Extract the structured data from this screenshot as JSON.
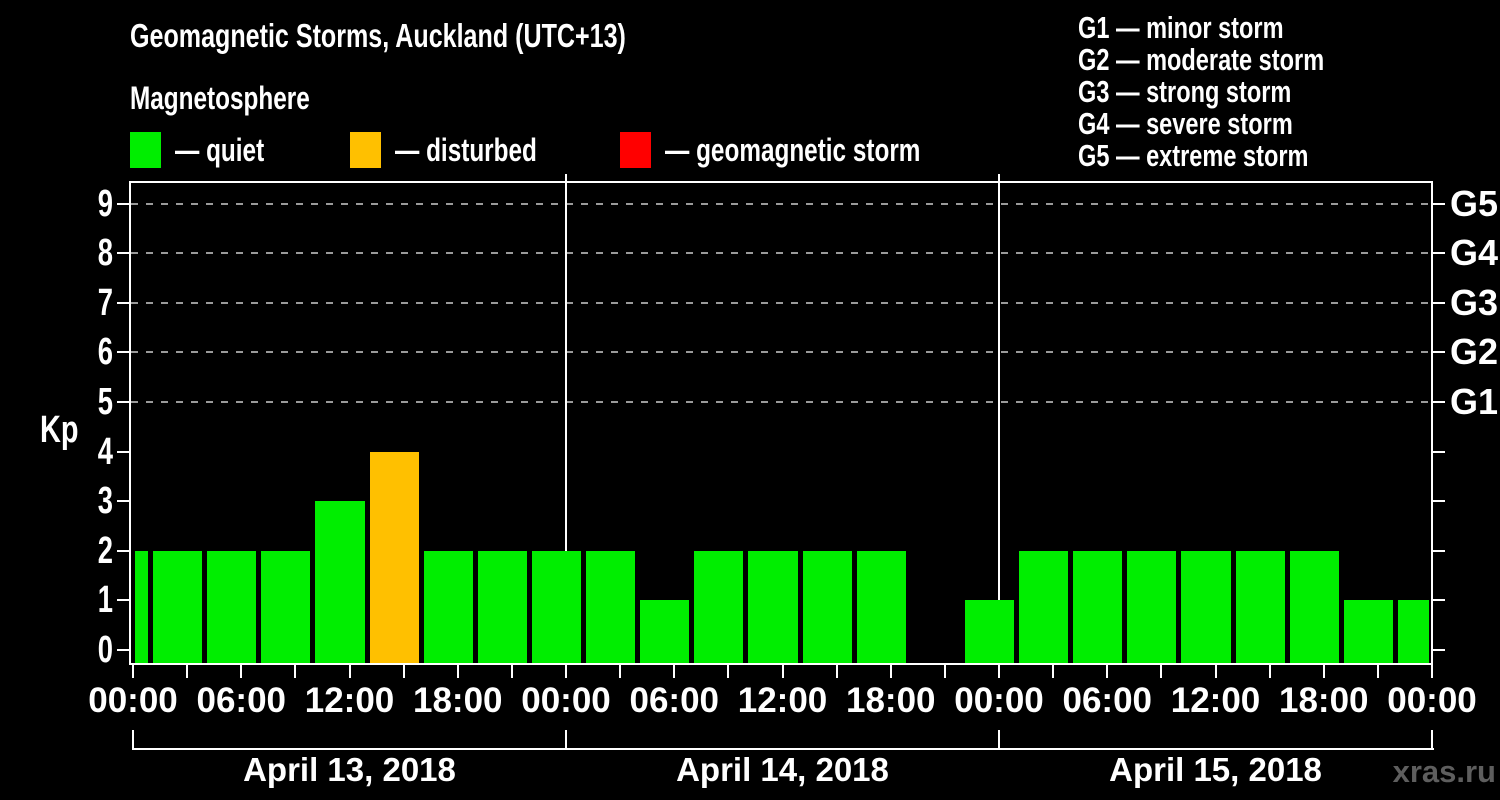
{
  "title": "Geomagnetic Storms, Auckland (UTC+13)",
  "subtitle": "Magnetosphere",
  "watermark": "xras.ru",
  "legend": {
    "items": [
      {
        "status": "quiet",
        "label": "— quiet",
        "color": "#00ee00"
      },
      {
        "status": "disturbed",
        "label": "— disturbed",
        "color": "#ffc000"
      },
      {
        "status": "storm",
        "label": "— geomagnetic storm",
        "color": "#ff0000"
      }
    ]
  },
  "storm_scale_legend": [
    {
      "code": "G1",
      "label": "G1 — minor storm"
    },
    {
      "code": "G2",
      "label": "G2 — moderate storm"
    },
    {
      "code": "G3",
      "label": "G3 — strong storm"
    },
    {
      "code": "G4",
      "label": "G4 — severe storm"
    },
    {
      "code": "G5",
      "label": "G5 — extreme storm"
    }
  ],
  "chart_data": {
    "type": "bar",
    "title": "Geomagnetic Storms, Auckland (UTC+13)",
    "ylabel": "Kp",
    "ylim": [
      0,
      9
    ],
    "yticks": [
      0,
      1,
      2,
      3,
      4,
      5,
      6,
      7,
      8,
      9
    ],
    "grid": "dashed horizontal lines at Kp 5-9 only",
    "timezone": "UTC+13",
    "x_hours_range": [
      0,
      72
    ],
    "x_minor_tick_hours": 3,
    "x_label_step_hours": 6,
    "xtick_labels": [
      "00:00",
      "06:00",
      "12:00",
      "18:00",
      "00:00",
      "06:00",
      "12:00",
      "18:00",
      "00:00",
      "06:00",
      "12:00",
      "18:00",
      "00:00"
    ],
    "days": [
      {
        "label": "April 13, 2018"
      },
      {
        "label": "April 14, 2018"
      },
      {
        "label": "April 15, 2018"
      }
    ],
    "right_axis_labels": [
      {
        "kp": 5,
        "label": "G1"
      },
      {
        "kp": 6,
        "label": "G2"
      },
      {
        "kp": 7,
        "label": "G3"
      },
      {
        "kp": 8,
        "label": "G4"
      },
      {
        "kp": 9,
        "label": "G5"
      }
    ],
    "colors": {
      "quiet": "#00ee00",
      "disturbed": "#ffc000",
      "storm": "#ff0000"
    },
    "bars": [
      {
        "t0": 0,
        "t1": 1,
        "kp": 2,
        "status": "quiet"
      },
      {
        "t0": 1,
        "t1": 4,
        "kp": 2,
        "status": "quiet"
      },
      {
        "t0": 4,
        "t1": 7,
        "kp": 2,
        "status": "quiet"
      },
      {
        "t0": 7,
        "t1": 10,
        "kp": 2,
        "status": "quiet"
      },
      {
        "t0": 10,
        "t1": 13,
        "kp": 3,
        "status": "quiet"
      },
      {
        "t0": 13,
        "t1": 16,
        "kp": 4,
        "status": "disturbed"
      },
      {
        "t0": 16,
        "t1": 19,
        "kp": 2,
        "status": "quiet"
      },
      {
        "t0": 19,
        "t1": 22,
        "kp": 2,
        "status": "quiet"
      },
      {
        "t0": 22,
        "t1": 25,
        "kp": 2,
        "status": "quiet"
      },
      {
        "t0": 25,
        "t1": 28,
        "kp": 2,
        "status": "quiet"
      },
      {
        "t0": 28,
        "t1": 31,
        "kp": 1,
        "status": "quiet"
      },
      {
        "t0": 31,
        "t1": 34,
        "kp": 2,
        "status": "quiet"
      },
      {
        "t0": 34,
        "t1": 37,
        "kp": 2,
        "status": "quiet"
      },
      {
        "t0": 37,
        "t1": 40,
        "kp": 2,
        "status": "quiet"
      },
      {
        "t0": 40,
        "t1": 43,
        "kp": 2,
        "status": "quiet"
      },
      {
        "t0": 43,
        "t1": 46,
        "kp": 0,
        "status": "quiet"
      },
      {
        "t0": 46,
        "t1": 49,
        "kp": 1,
        "status": "quiet"
      },
      {
        "t0": 49,
        "t1": 52,
        "kp": 2,
        "status": "quiet"
      },
      {
        "t0": 52,
        "t1": 55,
        "kp": 2,
        "status": "quiet"
      },
      {
        "t0": 55,
        "t1": 58,
        "kp": 2,
        "status": "quiet"
      },
      {
        "t0": 58,
        "t1": 61,
        "kp": 2,
        "status": "quiet"
      },
      {
        "t0": 61,
        "t1": 64,
        "kp": 2,
        "status": "quiet"
      },
      {
        "t0": 64,
        "t1": 67,
        "kp": 2,
        "status": "quiet"
      },
      {
        "t0": 67,
        "t1": 70,
        "kp": 1,
        "status": "quiet"
      },
      {
        "t0": 70,
        "t1": 72,
        "kp": 1,
        "status": "quiet"
      }
    ]
  }
}
